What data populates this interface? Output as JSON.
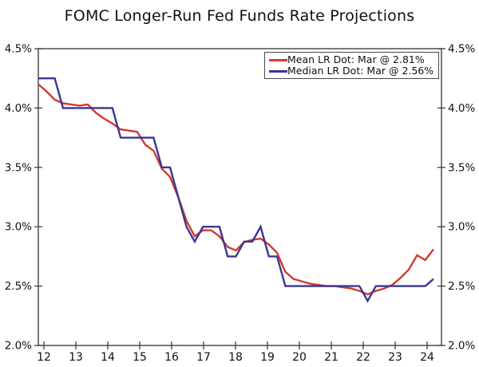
{
  "title": "FOMC Longer-Run Fed Funds Rate Projections",
  "colors": {
    "mean": "#d13a2e",
    "median": "#3c3494",
    "axis": "#404040",
    "text": "#111111"
  },
  "legend": {
    "items": [
      {
        "label": "Mean LR Dot: Mar @ 2.81%",
        "series": "mean"
      },
      {
        "label": "Median LR Dot: Mar @ 2.56%",
        "series": "median"
      }
    ]
  },
  "axes": {
    "y_left_labels": [
      "4.5%",
      "4.0%",
      "3.5%",
      "3.0%",
      "2.5%",
      "2.0%"
    ],
    "y_right_labels": [
      "4.5%",
      "4.0%",
      "3.5%",
      "3.0%",
      "2.5%",
      "2.0%"
    ],
    "y_values": [
      4.5,
      4.0,
      3.5,
      3.0,
      2.5,
      2.0
    ],
    "x_labels": [
      "12",
      "13",
      "14",
      "15",
      "16",
      "17",
      "18",
      "19",
      "20",
      "21",
      "22",
      "23",
      "24"
    ]
  },
  "chart_data": {
    "type": "line",
    "title": "FOMC Longer-Run Fed Funds Rate Projections",
    "ylim": [
      2.0,
      4.5
    ],
    "y_tick_step": 0.5,
    "grid": false,
    "legend_position": "top-right",
    "x_tick_labels": [
      "12",
      "13",
      "14",
      "15",
      "16",
      "17",
      "18",
      "19",
      "20",
      "21",
      "22",
      "23",
      "24"
    ],
    "x_meetings": [
      "Jan 2012",
      "Apr 2012",
      "Jun 2012",
      "Sep 2012",
      "Dec 2012",
      "Mar 2013",
      "Jun 2013",
      "Sep 2013",
      "Dec 2013",
      "Mar 2014",
      "Jun 2014",
      "Sep 2014",
      "Dec 2014",
      "Mar 2015",
      "Jun 2015",
      "Sep 2015",
      "Dec 2015",
      "Mar 2016",
      "Jun 2016",
      "Sep 2016",
      "Dec 2016",
      "Mar 2017",
      "Jun 2017",
      "Sep 2017",
      "Dec 2017",
      "Mar 2018",
      "Jun 2018",
      "Sep 2018",
      "Dec 2018",
      "Mar 2019",
      "Jun 2019",
      "Sep 2019",
      "Dec 2019",
      "Jun 2020",
      "Sep 2020",
      "Dec 2020",
      "Mar 2021",
      "Jun 2021",
      "Sep 2021",
      "Dec 2021",
      "Mar 2022",
      "Jun 2022",
      "Sep 2022",
      "Dec 2022",
      "Mar 2023",
      "Jun 2023",
      "Sep 2023",
      "Dec 2023",
      "Mar 2024"
    ],
    "series": [
      {
        "name": "Mean LR Dot",
        "color_key": "mean",
        "last_value_label": "Mar @ 2.81%",
        "values": [
          4.2,
          4.14,
          4.07,
          4.04,
          4.03,
          4.02,
          4.03,
          3.96,
          3.91,
          3.87,
          3.82,
          3.81,
          3.8,
          3.69,
          3.64,
          3.49,
          3.42,
          3.25,
          3.05,
          2.92,
          2.97,
          2.97,
          2.92,
          2.83,
          2.8,
          2.87,
          2.89,
          2.9,
          2.85,
          2.78,
          2.62,
          2.56,
          2.54,
          2.52,
          2.51,
          2.5,
          2.5,
          2.49,
          2.48,
          2.46,
          2.43,
          2.46,
          2.48,
          2.51,
          2.57,
          2.64,
          2.76,
          2.72,
          2.81
        ]
      },
      {
        "name": "Median LR Dot",
        "color_key": "median",
        "last_value_label": "Mar @ 2.56%",
        "values": [
          4.25,
          4.25,
          4.25,
          4.0,
          4.0,
          4.0,
          4.0,
          4.0,
          4.0,
          4.0,
          3.75,
          3.75,
          3.75,
          3.75,
          3.75,
          3.5,
          3.5,
          3.25,
          3.0,
          2.875,
          3.0,
          3.0,
          3.0,
          2.75,
          2.75,
          2.875,
          2.875,
          3.0,
          2.75,
          2.75,
          2.5,
          2.5,
          2.5,
          2.5,
          2.5,
          2.5,
          2.5,
          2.5,
          2.5,
          2.5,
          2.375,
          2.5,
          2.5,
          2.5,
          2.5,
          2.5,
          2.5,
          2.5,
          2.56
        ]
      }
    ]
  }
}
